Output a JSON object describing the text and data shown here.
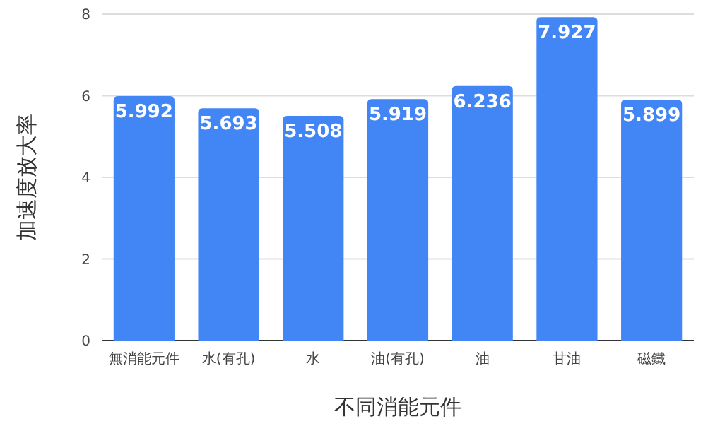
{
  "chart_data": {
    "type": "bar",
    "xlabel": "不同消能元件",
    "ylabel": "加速度放大率",
    "categories": [
      "無消能元件",
      "水(有孔)",
      "水",
      "油(有孔)",
      "油",
      "甘油",
      "磁鐵"
    ],
    "values": [
      5.992,
      5.693,
      5.508,
      5.919,
      6.236,
      7.927,
      5.899
    ],
    "color": "#4285f4",
    "ylim": [
      0,
      8
    ],
    "yticks": [
      0,
      2,
      4,
      6,
      8
    ],
    "grid": "y",
    "data_labels": true
  }
}
